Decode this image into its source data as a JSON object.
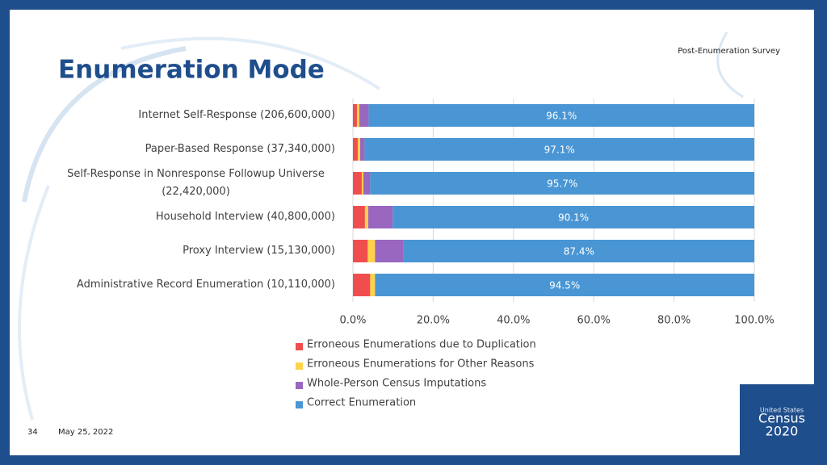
{
  "slide": {
    "title": "Enumeration Mode",
    "header_note": "Post-Enumeration Survey",
    "page_number": "34",
    "date": "May 25, 2022",
    "logo": {
      "line1": "United States",
      "line2": "Census",
      "line3": "2020"
    }
  },
  "chart_data": {
    "type": "stacked_barh",
    "categories": [
      "Internet Self-Response (206,600,000)",
      "Paper-Based Response (37,340,000)",
      "Self-Response in Nonresponse Followup Universe (22,420,000)",
      "Household Interview (40,800,000)",
      "Proxy Interview (15,130,000)",
      "Administrative Record Enumeration (10,110,000)"
    ],
    "series": [
      {
        "name": "Erroneous Enumerations due to Duplication",
        "color": "#f04e4e",
        "values": [
          1.0,
          1.2,
          2.2,
          3.0,
          3.7,
          4.3
        ]
      },
      {
        "name": "Erroneous Enumerations for Other Reasons",
        "color": "#ffd24a",
        "values": [
          0.6,
          0.6,
          0.4,
          0.8,
          1.8,
          1.2
        ]
      },
      {
        "name": "Whole-Person Census Imputations",
        "color": "#9966c0",
        "values": [
          2.3,
          1.1,
          1.7,
          6.1,
          7.1,
          0.0
        ]
      },
      {
        "name": "Correct Enumeration",
        "color": "#4a96d4",
        "values": [
          96.1,
          97.1,
          95.7,
          90.1,
          87.4,
          94.5
        ],
        "value_labels": [
          "96.1%",
          "97.1%",
          "95.7%",
          "90.1%",
          "87.4%",
          "94.5%"
        ]
      }
    ],
    "xlim": [
      0,
      100
    ],
    "xticks": [
      {
        "value": 0,
        "label": "0.0%"
      },
      {
        "value": 20,
        "label": "20.0%"
      },
      {
        "value": 40,
        "label": "40.0%"
      },
      {
        "value": 60,
        "label": "60.0%"
      },
      {
        "value": 80,
        "label": "80.0%"
      },
      {
        "value": 100,
        "label": "100.0%"
      }
    ],
    "grid": true,
    "legend": "bottom"
  }
}
